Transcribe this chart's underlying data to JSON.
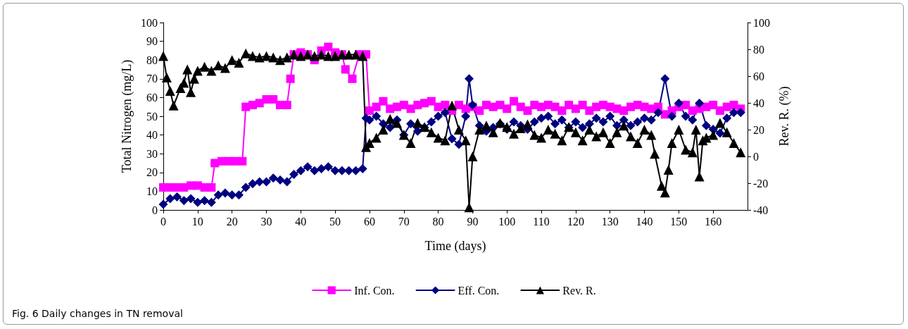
{
  "chart_data": {
    "type": "line",
    "title": "Fig. 6 Daily changes in TN removal",
    "xlabel": "Time (days)",
    "ylabel": "Total Nitrogen (mg/L)",
    "y2label": "Rev. R. (%)",
    "xlim": [
      0,
      170
    ],
    "xticks": [
      0,
      10,
      20,
      30,
      40,
      50,
      60,
      70,
      80,
      90,
      100,
      110,
      120,
      130,
      140,
      150,
      160
    ],
    "ylim": [
      0,
      100
    ],
    "yticks": [
      0,
      10,
      20,
      30,
      40,
      50,
      60,
      70,
      80,
      90,
      100
    ],
    "y2lim": [
      -40,
      100
    ],
    "y2ticks": [
      -40,
      -20,
      0,
      20,
      40,
      60,
      80,
      100
    ],
    "grid": false,
    "legend": "bottom",
    "line_style": "solid",
    "series": [
      {
        "name": "Inf. Con.",
        "color": "#ff00ff",
        "marker": "square",
        "x": [
          0,
          2,
          4,
          6,
          8,
          10,
          12,
          14,
          15,
          17,
          19,
          21,
          23,
          24,
          26,
          28,
          30,
          32,
          34,
          36,
          37,
          38,
          40,
          42,
          44,
          46,
          48,
          50,
          52,
          53,
          55,
          57,
          59,
          60,
          62,
          64,
          66,
          68,
          70,
          72,
          74,
          76,
          78,
          80,
          82,
          84,
          86,
          88,
          90,
          92,
          94,
          96,
          98,
          100,
          102,
          104,
          106,
          108,
          110,
          112,
          114,
          116,
          118,
          120,
          122,
          124,
          126,
          128,
          130,
          132,
          134,
          136,
          138,
          140,
          142,
          144,
          146,
          148,
          150,
          152,
          154,
          156,
          158,
          160,
          162,
          164,
          166,
          168
        ],
        "values": [
          12,
          12,
          12,
          12,
          13,
          13,
          12,
          12,
          25,
          26,
          26,
          26,
          26,
          55,
          56,
          57,
          59,
          59,
          56,
          56,
          70,
          83,
          84,
          83,
          80,
          85,
          87,
          84,
          83,
          75,
          70,
          83,
          83,
          53,
          55,
          58,
          54,
          55,
          56,
          54,
          56,
          57,
          58,
          55,
          56,
          53,
          56,
          54,
          55,
          53,
          56,
          55,
          56,
          54,
          58,
          55,
          53,
          56,
          55,
          56,
          55,
          53,
          56,
          54,
          56,
          53,
          55,
          56,
          55,
          54,
          53,
          55,
          56,
          55,
          54,
          55,
          51,
          53,
          55,
          56,
          53,
          54,
          55,
          56,
          53,
          55,
          56,
          54
        ]
      },
      {
        "name": "Eff. Con.",
        "color": "#000080",
        "marker": "diamond",
        "x": [
          0,
          2,
          4,
          6,
          8,
          10,
          12,
          14,
          16,
          18,
          20,
          22,
          24,
          26,
          28,
          30,
          32,
          34,
          36,
          38,
          40,
          42,
          44,
          46,
          48,
          50,
          52,
          54,
          56,
          58,
          59,
          60,
          62,
          64,
          66,
          68,
          70,
          72,
          74,
          76,
          78,
          80,
          82,
          84,
          86,
          88,
          89,
          90,
          92,
          94,
          96,
          98,
          100,
          102,
          104,
          106,
          108,
          110,
          112,
          114,
          116,
          118,
          120,
          122,
          124,
          126,
          128,
          130,
          132,
          134,
          136,
          138,
          140,
          142,
          144,
          146,
          148,
          150,
          152,
          154,
          156,
          158,
          160,
          162,
          164,
          166,
          168
        ],
        "values": [
          3,
          6,
          7,
          5,
          6,
          4,
          5,
          4,
          8,
          9,
          8,
          8,
          12,
          14,
          15,
          15,
          17,
          16,
          15,
          19,
          21,
          23,
          21,
          22,
          23,
          21,
          21,
          21,
          21,
          22,
          49,
          48,
          50,
          46,
          44,
          48,
          40,
          46,
          42,
          44,
          47,
          50,
          52,
          38,
          35,
          50,
          70,
          56,
          45,
          42,
          44,
          46,
          43,
          47,
          45,
          43,
          47,
          49,
          50,
          46,
          48,
          44,
          47,
          44,
          46,
          49,
          47,
          50,
          45,
          48,
          45,
          47,
          49,
          48,
          52,
          70,
          50,
          57,
          50,
          48,
          57,
          45,
          43,
          41,
          49,
          52,
          52
        ]
      },
      {
        "name": "Rev. R.",
        "color": "#000000",
        "marker": "triangle",
        "axis": "y2",
        "x": [
          0,
          1,
          2,
          3,
          5,
          6,
          7,
          8,
          9,
          10,
          12,
          14,
          16,
          18,
          20,
          22,
          24,
          26,
          28,
          30,
          32,
          34,
          36,
          38,
          40,
          42,
          44,
          46,
          48,
          50,
          52,
          54,
          56,
          58,
          59,
          60,
          62,
          64,
          66,
          68,
          70,
          72,
          74,
          76,
          78,
          80,
          82,
          84,
          86,
          88,
          89,
          90,
          92,
          94,
          96,
          98,
          100,
          102,
          104,
          106,
          108,
          110,
          112,
          114,
          116,
          118,
          120,
          122,
          124,
          126,
          128,
          130,
          132,
          134,
          136,
          138,
          140,
          142,
          143,
          145,
          146,
          147,
          148,
          150,
          152,
          154,
          155,
          156,
          157,
          158,
          160,
          162,
          164,
          166,
          168
        ],
        "values": [
          75,
          59,
          49,
          38,
          51,
          55,
          65,
          48,
          58,
          64,
          67,
          64,
          68,
          66,
          72,
          70,
          77,
          75,
          74,
          75,
          74,
          72,
          74,
          76,
          75,
          76,
          75,
          76,
          75,
          75,
          76,
          76,
          76,
          75,
          7,
          10,
          14,
          20,
          28,
          25,
          16,
          10,
          25,
          22,
          18,
          14,
          12,
          38,
          20,
          12,
          -38,
          0,
          20,
          23,
          18,
          25,
          22,
          17,
          21,
          24,
          16,
          14,
          20,
          17,
          12,
          22,
          18,
          12,
          20,
          15,
          18,
          10,
          18,
          23,
          15,
          10,
          20,
          16,
          2,
          -22,
          -27,
          -10,
          10,
          20,
          5,
          3,
          20,
          -15,
          12,
          14,
          16,
          25,
          18,
          10,
          3
        ]
      }
    ]
  }
}
